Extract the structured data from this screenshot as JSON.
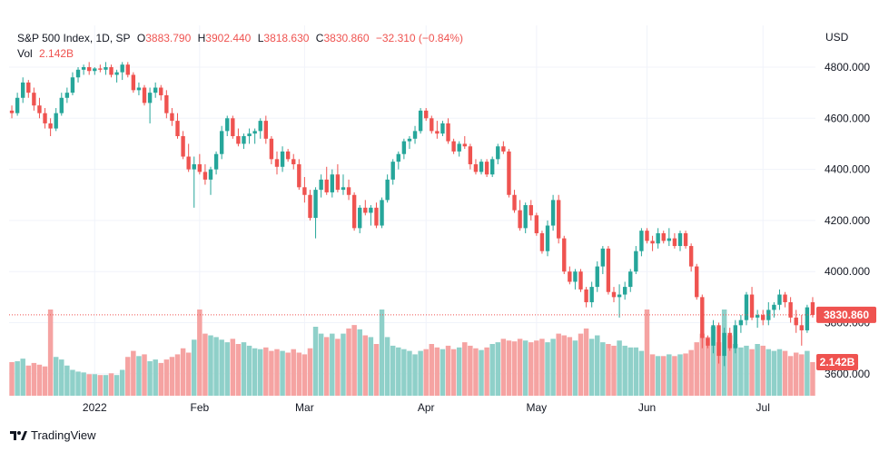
{
  "header": {
    "symbol": "S&P 500 Index, 1D, SP",
    "open_label": "O",
    "open": "3883.790",
    "high_label": "H",
    "high": "3902.440",
    "low_label": "L",
    "low": "3818.630",
    "close_label": "C",
    "close": "3830.860",
    "change": "−32.310 (−0.84%)",
    "vol_label": "Vol",
    "vol": "2.142B"
  },
  "currency": "USD",
  "branding": "TradingView",
  "colors": {
    "up": "#26a69a",
    "down": "#ef5350",
    "up_vol": "#8fd0c9",
    "down_vol": "#f5a3a2",
    "grid": "#f0f3fa"
  },
  "chart_data": {
    "type": "candlestick",
    "ylim": [
      3540,
      4870
    ],
    "y_ticks": [
      "4800.000",
      "4600.000",
      "4400.000",
      "4200.000",
      "4000.000",
      "3800.000",
      "3600.000"
    ],
    "y_tick_values": [
      4800,
      4600,
      4400,
      4200,
      4000,
      3800,
      3600
    ],
    "x_ticks": [
      {
        "label": "2022",
        "index": 15
      },
      {
        "label": "Feb",
        "index": 34
      },
      {
        "label": "Mar",
        "index": 53
      },
      {
        "label": "Apr",
        "index": 75
      },
      {
        "label": "May",
        "index": 95
      },
      {
        "label": "Jun",
        "index": 115
      },
      {
        "label": "Jul",
        "index": 136
      }
    ],
    "last_price_label": "3830.860",
    "last_price": 3830.86,
    "last_volume_label": "2.142B",
    "last_volume_rel": 0.39,
    "candles": [
      [
        4630,
        4650,
        4600,
        4620,
        0.39
      ],
      [
        4620,
        4700,
        4610,
        4680,
        0.4
      ],
      [
        4680,
        4760,
        4660,
        4740,
        0.43
      ],
      [
        4740,
        4750,
        4680,
        4700,
        0.35
      ],
      [
        4700,
        4720,
        4630,
        4650,
        0.38
      ],
      [
        4650,
        4680,
        4600,
        4620,
        0.36
      ],
      [
        4620,
        4640,
        4560,
        4580,
        0.34
      ],
      [
        4580,
        4600,
        4530,
        4560,
        1.0
      ],
      [
        4560,
        4640,
        4550,
        4620,
        0.45
      ],
      [
        4620,
        4700,
        4610,
        4680,
        0.42
      ],
      [
        4680,
        4720,
        4660,
        4700,
        0.35
      ],
      [
        4700,
        4780,
        4690,
        4760,
        0.3
      ],
      [
        4760,
        4800,
        4740,
        4790,
        0.28
      ],
      [
        4790,
        4810,
        4770,
        4800,
        0.27
      ],
      [
        4800,
        4820,
        4770,
        4785,
        0.25
      ],
      [
        4785,
        4800,
        4770,
        4795,
        0.25
      ],
      [
        4795,
        4810,
        4780,
        4790,
        0.24
      ],
      [
        4790,
        4820,
        4770,
        4800,
        0.24
      ],
      [
        4800,
        4810,
        4760,
        4770,
        0.26
      ],
      [
        4770,
        4790,
        4740,
        4780,
        0.24
      ],
      [
        4780,
        4820,
        4750,
        4810,
        0.3
      ],
      [
        4810,
        4820,
        4760,
        4770,
        0.45
      ],
      [
        4770,
        4780,
        4700,
        4710,
        0.52
      ],
      [
        4710,
        4740,
        4690,
        4720,
        0.46
      ],
      [
        4720,
        4730,
        4650,
        4660,
        0.48
      ],
      [
        4660,
        4720,
        4580,
        4700,
        0.4
      ],
      [
        4700,
        4740,
        4680,
        4720,
        0.42
      ],
      [
        4720,
        4730,
        4670,
        4690,
        0.38
      ],
      [
        4690,
        4710,
        4600,
        4620,
        0.42
      ],
      [
        4620,
        4640,
        4570,
        4590,
        0.45
      ],
      [
        4590,
        4620,
        4520,
        4530,
        0.48
      ],
      [
        4530,
        4550,
        4440,
        4450,
        0.55
      ],
      [
        4450,
        4500,
        4390,
        4400,
        0.5
      ],
      [
        4400,
        4450,
        4250,
        4420,
        0.65
      ],
      [
        4420,
        4460,
        4380,
        4390,
        1.0
      ],
      [
        4390,
        4420,
        4340,
        4360,
        0.72
      ],
      [
        4360,
        4410,
        4300,
        4400,
        0.7
      ],
      [
        4400,
        4470,
        4380,
        4460,
        0.68
      ],
      [
        4460,
        4570,
        4440,
        4550,
        0.65
      ],
      [
        4550,
        4610,
        4530,
        4600,
        0.62
      ],
      [
        4600,
        4610,
        4520,
        4530,
        0.66
      ],
      [
        4530,
        4560,
        4490,
        4500,
        0.6
      ],
      [
        4500,
        4540,
        4480,
        4530,
        0.62
      ],
      [
        4530,
        4560,
        4500,
        4540,
        0.58
      ],
      [
        4540,
        4560,
        4500,
        4550,
        0.55
      ],
      [
        4550,
        4600,
        4520,
        4590,
        0.54
      ],
      [
        4590,
        4610,
        4500,
        4520,
        0.56
      ],
      [
        4520,
        4530,
        4420,
        4440,
        0.52
      ],
      [
        4440,
        4470,
        4380,
        4410,
        0.54
      ],
      [
        4410,
        4490,
        4390,
        4470,
        0.52
      ],
      [
        4470,
        4480,
        4430,
        4440,
        0.5
      ],
      [
        4440,
        4460,
        4400,
        4420,
        0.54
      ],
      [
        4420,
        4440,
        4320,
        4330,
        0.5
      ],
      [
        4330,
        4370,
        4270,
        4300,
        0.48
      ],
      [
        4300,
        4320,
        4200,
        4210,
        0.55
      ],
      [
        4210,
        4330,
        4130,
        4320,
        0.8
      ],
      [
        4320,
        4380,
        4290,
        4360,
        0.72
      ],
      [
        4360,
        4410,
        4300,
        4310,
        0.68
      ],
      [
        4310,
        4400,
        4290,
        4380,
        0.72
      ],
      [
        4380,
        4420,
        4310,
        4320,
        0.66
      ],
      [
        4320,
        4380,
        4300,
        4330,
        0.72
      ],
      [
        4330,
        4360,
        4280,
        4300,
        0.78
      ],
      [
        4300,
        4310,
        4160,
        4170,
        0.82
      ],
      [
        4170,
        4260,
        4150,
        4250,
        0.77
      ],
      [
        4250,
        4280,
        4220,
        4230,
        0.7
      ],
      [
        4230,
        4260,
        4180,
        4250,
        0.68
      ],
      [
        4250,
        4270,
        4170,
        4180,
        0.6
      ],
      [
        4180,
        4290,
        4170,
        4280,
        1.0
      ],
      [
        4280,
        4380,
        4270,
        4360,
        0.68
      ],
      [
        4360,
        4440,
        4340,
        4430,
        0.58
      ],
      [
        4430,
        4470,
        4400,
        4460,
        0.56
      ],
      [
        4460,
        4520,
        4440,
        4510,
        0.54
      ],
      [
        4510,
        4530,
        4480,
        4520,
        0.52
      ],
      [
        4520,
        4570,
        4500,
        4550,
        0.48
      ],
      [
        4550,
        4640,
        4540,
        4630,
        0.52
      ],
      [
        4630,
        4640,
        4590,
        4600,
        0.54
      ],
      [
        4600,
        4610,
        4540,
        4550,
        0.6
      ],
      [
        4550,
        4590,
        4520,
        4540,
        0.56
      ],
      [
        4540,
        4590,
        4530,
        4580,
        0.54
      ],
      [
        4580,
        4600,
        4500,
        4510,
        0.58
      ],
      [
        4510,
        4520,
        4460,
        4470,
        0.54
      ],
      [
        4470,
        4510,
        4450,
        4500,
        0.56
      ],
      [
        4500,
        4530,
        4480,
        4490,
        0.62
      ],
      [
        4490,
        4500,
        4400,
        4420,
        0.58
      ],
      [
        4420,
        4440,
        4380,
        4390,
        0.55
      ],
      [
        4390,
        4440,
        4380,
        4430,
        0.53
      ],
      [
        4430,
        4440,
        4370,
        4380,
        0.56
      ],
      [
        4380,
        4450,
        4370,
        4440,
        0.6
      ],
      [
        4440,
        4500,
        4420,
        4490,
        0.62
      ],
      [
        4490,
        4510,
        4460,
        4470,
        0.66
      ],
      [
        4470,
        4480,
        4290,
        4300,
        0.64
      ],
      [
        4300,
        4320,
        4230,
        4240,
        0.63
      ],
      [
        4240,
        4280,
        4160,
        4170,
        0.66
      ],
      [
        4170,
        4270,
        4150,
        4260,
        0.64
      ],
      [
        4260,
        4280,
        4200,
        4220,
        0.62
      ],
      [
        4220,
        4230,
        4140,
        4150,
        0.64
      ],
      [
        4150,
        4160,
        4070,
        4080,
        0.66
      ],
      [
        4080,
        4200,
        4060,
        4180,
        0.62
      ],
      [
        4180,
        4300,
        4160,
        4280,
        0.66
      ],
      [
        4280,
        4300,
        4110,
        4130,
        0.72
      ],
      [
        4130,
        4140,
        3990,
        4000,
        0.7
      ],
      [
        4000,
        4020,
        3950,
        3960,
        0.68
      ],
      [
        3960,
        4010,
        3930,
        4000,
        0.64
      ],
      [
        4000,
        4010,
        3920,
        3930,
        0.72
      ],
      [
        3930,
        3940,
        3860,
        3880,
        0.78
      ],
      [
        3880,
        3960,
        3860,
        3940,
        0.66
      ],
      [
        3940,
        4040,
        3920,
        4020,
        0.7
      ],
      [
        4020,
        4100,
        3990,
        4090,
        0.62
      ],
      [
        4090,
        4100,
        3910,
        3920,
        0.6
      ],
      [
        3920,
        3940,
        3880,
        3900,
        0.58
      ],
      [
        3900,
        3950,
        3820,
        3910,
        0.64
      ],
      [
        3910,
        3960,
        3890,
        3940,
        0.58
      ],
      [
        3940,
        4010,
        3920,
        4000,
        0.56
      ],
      [
        4000,
        4100,
        3990,
        4080,
        0.56
      ],
      [
        4080,
        4170,
        4060,
        4160,
        0.52
      ],
      [
        4160,
        4170,
        4110,
        4120,
        1.0
      ],
      [
        4120,
        4140,
        4080,
        4110,
        0.48
      ],
      [
        4110,
        4170,
        4090,
        4150,
        0.46
      ],
      [
        4150,
        4160,
        4110,
        4120,
        0.46
      ],
      [
        4120,
        4170,
        4100,
        4130,
        0.48
      ],
      [
        4130,
        4150,
        4090,
        4100,
        0.46
      ],
      [
        4100,
        4160,
        4080,
        4150,
        0.48
      ],
      [
        4150,
        4160,
        4090,
        4100,
        0.49
      ],
      [
        4100,
        4110,
        4000,
        4020,
        0.53
      ],
      [
        4020,
        4030,
        3890,
        3900,
        0.62
      ],
      [
        3900,
        3910,
        3700,
        3740,
        0.72
      ],
      [
        3740,
        3750,
        3700,
        3710,
        0.68
      ],
      [
        3710,
        3810,
        3680,
        3790,
        0.8
      ],
      [
        3790,
        3800,
        3640,
        3670,
        0.62
      ],
      [
        3670,
        3780,
        3630,
        3760,
        1.0
      ],
      [
        3760,
        3780,
        3690,
        3700,
        0.7
      ],
      [
        3700,
        3810,
        3680,
        3790,
        0.6
      ],
      [
        3790,
        3830,
        3760,
        3810,
        0.56
      ],
      [
        3810,
        3920,
        3790,
        3910,
        0.58
      ],
      [
        3910,
        3940,
        3810,
        3820,
        0.54
      ],
      [
        3820,
        3850,
        3780,
        3830,
        0.6
      ],
      [
        3830,
        3850,
        3790,
        3810,
        0.58
      ],
      [
        3810,
        3880,
        3790,
        3850,
        0.54
      ],
      [
        3850,
        3880,
        3820,
        3870,
        0.52
      ],
      [
        3870,
        3930,
        3850,
        3910,
        0.54
      ],
      [
        3910,
        3920,
        3860,
        3880,
        0.52
      ],
      [
        3880,
        3900,
        3800,
        3820,
        0.46
      ],
      [
        3820,
        3850,
        3760,
        3790,
        0.5
      ],
      [
        3790,
        3830,
        3710,
        3770,
        0.48
      ],
      [
        3770,
        3870,
        3760,
        3860,
        0.52
      ],
      [
        3880,
        3900,
        3820,
        3830,
        0.39
      ]
    ]
  }
}
